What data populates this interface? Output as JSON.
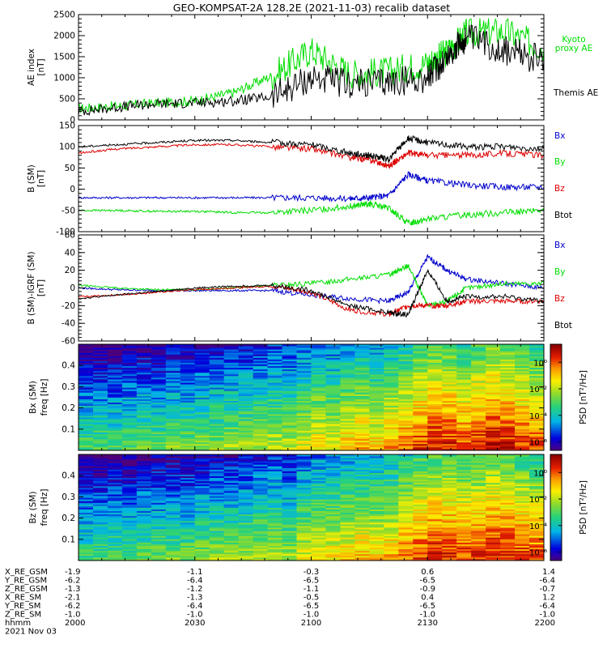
{
  "title": "GEO-KOMPSAT-2A 128.2E (2021-11-03) recalib dataset",
  "time_axis": {
    "start": "2000",
    "end": "2200",
    "tick_labels": [
      "2000",
      "2030",
      "2100",
      "2130",
      "2200"
    ]
  },
  "orbit": {
    "rows": [
      {
        "label": "X_RE_GSM",
        "values": [
          "-1.9",
          "-1.1",
          "-0.3",
          "0.6",
          "1.4"
        ]
      },
      {
        "label": "Y_RE_GSM",
        "values": [
          "-6.2",
          "-6.4",
          "-6.5",
          "-6.5",
          "-6.4"
        ]
      },
      {
        "label": "Z_RE_GSM",
        "values": [
          "-1.3",
          "-1.2",
          "-1.1",
          "-0.9",
          "-0.7"
        ]
      },
      {
        "label": "X_RE_SM",
        "values": [
          "-2.1",
          "-1.3",
          "-0.5",
          "0.4",
          "1.2"
        ]
      },
      {
        "label": "Y_RE_SM",
        "values": [
          "-6.2",
          "-6.4",
          "-6.5",
          "-6.5",
          "-6.4"
        ]
      },
      {
        "label": "Z_RE_SM",
        "values": [
          "-1.0",
          "-1.0",
          "-1.0",
          "-1.0",
          "-1.0"
        ]
      },
      {
        "label": "hhmm",
        "values": [
          "2000",
          "2030",
          "2100",
          "2130",
          "2200"
        ]
      }
    ],
    "date": "2021 Nov 03"
  },
  "chart_data": [
    {
      "type": "line",
      "ylabel": "AE index\n[nT]",
      "ylim": [
        0,
        2500
      ],
      "yticks": [
        "0",
        "500",
        "1000",
        "1500",
        "2000",
        "2500"
      ],
      "x": [
        "2000",
        "2010",
        "2020",
        "2030",
        "2040",
        "2050",
        "2100",
        "2110",
        "2120",
        "2130",
        "2135",
        "2140",
        "2150",
        "2200"
      ],
      "series": [
        {
          "name": "Kyoto\nproxy AE",
          "color": "#00dd00",
          "values": [
            270,
            330,
            400,
            450,
            650,
            1050,
            1650,
            1100,
            1150,
            1350,
            1600,
            2050,
            2100,
            1700
          ]
        },
        {
          "name": "Themis AE",
          "color": "#000000",
          "values": [
            200,
            300,
            380,
            400,
            450,
            550,
            1000,
            850,
            900,
            1000,
            1500,
            1950,
            1650,
            1400
          ]
        }
      ]
    },
    {
      "type": "line",
      "ylabel": "B (SM)\n[nT]",
      "ylim": [
        -100,
        150
      ],
      "yticks": [
        "-100",
        "-50",
        "0",
        "50",
        "100",
        "150"
      ],
      "x": [
        "2000",
        "2010",
        "2020",
        "2030",
        "2040",
        "2050",
        "2100",
        "2110",
        "2115",
        "2120",
        "2125",
        "2130",
        "2140",
        "2150",
        "2200"
      ],
      "series": [
        {
          "name": "Bx",
          "color": "#0000cc",
          "values": [
            -20,
            -20,
            -20,
            -20,
            -20,
            -20,
            -20,
            -22,
            -20,
            -15,
            35,
            20,
            10,
            5,
            5
          ]
        },
        {
          "name": "By",
          "color": "#00dd00",
          "values": [
            -50,
            -50,
            -52,
            -52,
            -55,
            -55,
            -50,
            -40,
            -35,
            -45,
            -80,
            -70,
            -60,
            -55,
            -50
          ]
        },
        {
          "name": "Bz",
          "color": "#dd0000",
          "values": [
            85,
            95,
            100,
            105,
            105,
            100,
            95,
            75,
            70,
            55,
            85,
            80,
            80,
            85,
            80
          ]
        },
        {
          "name": "Btot",
          "color": "#000000",
          "values": [
            100,
            105,
            110,
            115,
            115,
            110,
            105,
            85,
            80,
            70,
            120,
            110,
            100,
            100,
            95
          ]
        }
      ]
    },
    {
      "type": "line",
      "ylabel": "B (SM)-IGRF (SM)\n[nT]",
      "ylim": [
        -60,
        60
      ],
      "yticks": [
        "-60",
        "-40",
        "-20",
        "0",
        "20",
        "40",
        "60"
      ],
      "x": [
        "2000",
        "2010",
        "2020",
        "2030",
        "2040",
        "2050",
        "2100",
        "2110",
        "2120",
        "2125",
        "2130",
        "2135",
        "2140",
        "2150",
        "2200"
      ],
      "series": [
        {
          "name": "Bx",
          "color": "#0000cc",
          "values": [
            0,
            -2,
            -3,
            -3,
            -3,
            -3,
            -8,
            -12,
            -15,
            -5,
            35,
            20,
            10,
            5,
            0
          ]
        },
        {
          "name": "By",
          "color": "#00dd00",
          "values": [
            3,
            0,
            -2,
            -2,
            0,
            3,
            5,
            10,
            15,
            25,
            -20,
            -15,
            0,
            5,
            5
          ]
        },
        {
          "name": "Bz",
          "color": "#dd0000",
          "values": [
            -10,
            -8,
            -5,
            -2,
            0,
            2,
            -5,
            -25,
            -30,
            -20,
            -20,
            -20,
            -15,
            -15,
            -15
          ]
        },
        {
          "name": "Btot",
          "color": "#000000",
          "values": [
            -12,
            -8,
            -4,
            0,
            2,
            3,
            -3,
            -20,
            -28,
            -30,
            20,
            -15,
            -10,
            -10,
            -15
          ]
        }
      ]
    },
    {
      "type": "heatmap",
      "ylabel": "Bx (SM)\nfreq [Hz]",
      "ylim": [
        0,
        0.5
      ],
      "yticks": [
        "0.1",
        "0.2",
        "0.3",
        "0.4"
      ],
      "colorbar": {
        "label": "PSD [nT²/Hz]",
        "ticks": [
          "10⁰",
          "10⁻²",
          "10⁻⁴",
          "10⁻⁶"
        ]
      },
      "columns_log_psd": [
        -3.5,
        -3.4,
        -3.5,
        -3.3,
        -3.2,
        -3.3,
        -3.0,
        -3.1,
        -2.9,
        -2.8,
        -2.7,
        -2.6,
        -2.5,
        -2.3,
        -2.4,
        -2.0,
        -1.6,
        -1.8,
        -1.4,
        -1.2,
        -1.5,
        -1.1,
        -0.6,
        -0.2,
        0.2,
        0.1,
        -0.3,
        0.0,
        0.4,
        0.2,
        -0.1,
        -0.4
      ]
    },
    {
      "type": "heatmap",
      "ylabel": "Bz (SM)\nfreq [Hz]",
      "ylim": [
        0,
        0.5
      ],
      "yticks": [
        "0.1",
        "0.2",
        "0.3",
        "0.4"
      ],
      "colorbar": {
        "label": "PSD [nT²/Hz]",
        "ticks": [
          "10⁰",
          "10⁻²",
          "10⁻⁴",
          "10⁻⁶"
        ]
      },
      "columns_log_psd": [
        -3.6,
        -3.5,
        -3.4,
        -3.5,
        -3.3,
        -3.2,
        -3.1,
        -3.2,
        -3.0,
        -2.8,
        -2.9,
        -2.7,
        -2.5,
        -2.4,
        -2.6,
        -2.1,
        -1.8,
        -1.7,
        -1.5,
        -1.3,
        -1.4,
        -1.2,
        -0.7,
        -0.3,
        0.1,
        0.0,
        -0.2,
        -0.1,
        0.2,
        0.1,
        -0.2,
        -0.5
      ]
    }
  ]
}
